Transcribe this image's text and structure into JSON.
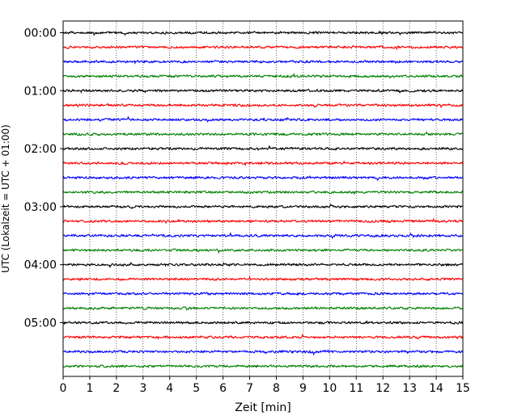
{
  "chart_data": {
    "type": "line",
    "title": "",
    "xlabel": "Zeit  [min]",
    "ylabel": "UTC (Lokalzeit = UTC + 01:00)",
    "xlim": [
      0,
      15
    ],
    "x_ticks": [
      "0",
      "1",
      "2",
      "3",
      "4",
      "5",
      "6",
      "7",
      "8",
      "9",
      "10",
      "11",
      "12",
      "13",
      "14",
      "15"
    ],
    "y_ticks": [
      "00:00",
      "01:00",
      "02:00",
      "03:00",
      "04:00",
      "05:00"
    ],
    "grid": "vertical dotted",
    "colors": [
      "#000000",
      "#ff0000",
      "#0000ff",
      "#008000"
    ],
    "traces": [
      {
        "start": "00:00",
        "color": "#000000"
      },
      {
        "start": "00:15",
        "color": "#ff0000"
      },
      {
        "start": "00:30",
        "color": "#0000ff"
      },
      {
        "start": "00:45",
        "color": "#008000"
      },
      {
        "start": "01:00",
        "color": "#000000"
      },
      {
        "start": "01:15",
        "color": "#ff0000"
      },
      {
        "start": "01:30",
        "color": "#0000ff"
      },
      {
        "start": "01:45",
        "color": "#008000"
      },
      {
        "start": "02:00",
        "color": "#000000"
      },
      {
        "start": "02:15",
        "color": "#ff0000"
      },
      {
        "start": "02:30",
        "color": "#0000ff"
      },
      {
        "start": "02:45",
        "color": "#008000"
      },
      {
        "start": "03:00",
        "color": "#000000"
      },
      {
        "start": "03:15",
        "color": "#ff0000"
      },
      {
        "start": "03:30",
        "color": "#0000ff"
      },
      {
        "start": "03:45",
        "color": "#008000"
      },
      {
        "start": "04:00",
        "color": "#000000"
      },
      {
        "start": "04:15",
        "color": "#ff0000"
      },
      {
        "start": "04:30",
        "color": "#0000ff"
      },
      {
        "start": "04:45",
        "color": "#008000"
      },
      {
        "start": "05:00",
        "color": "#000000"
      },
      {
        "start": "05:15",
        "color": "#ff0000"
      },
      {
        "start": "05:30",
        "color": "#0000ff"
      },
      {
        "start": "05:45",
        "color": "#008000"
      }
    ]
  }
}
